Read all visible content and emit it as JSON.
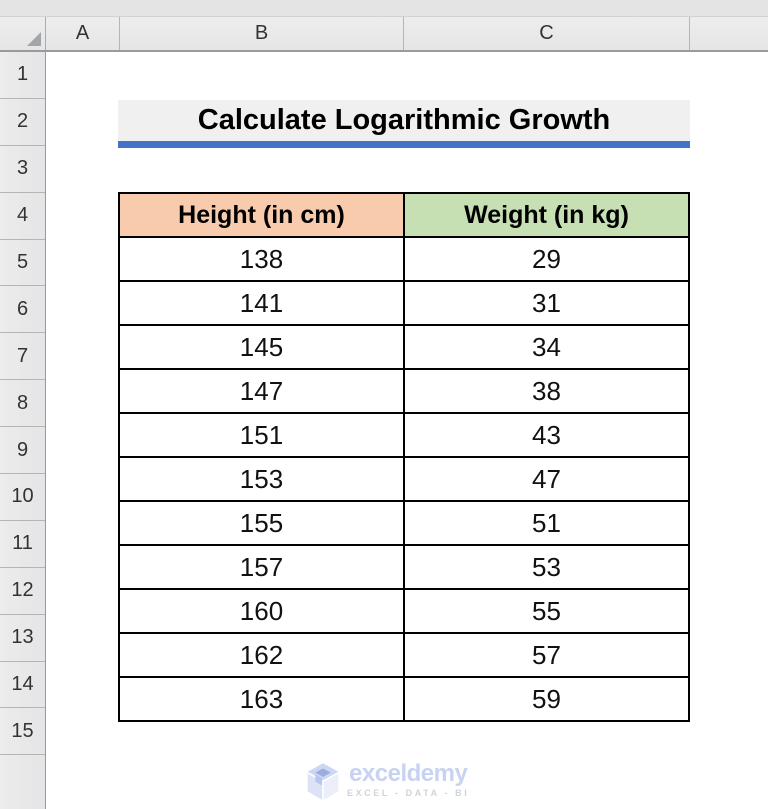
{
  "sheet": {
    "column_headers": [
      "A",
      "B",
      "C"
    ],
    "row_headers": [
      "1",
      "2",
      "3",
      "4",
      "5",
      "6",
      "7",
      "8",
      "9",
      "10",
      "11",
      "12",
      "13",
      "14",
      "15"
    ]
  },
  "title": {
    "text": "Calculate Logarithmic Growth"
  },
  "table": {
    "columns": [
      {
        "label": "Height (in cm)"
      },
      {
        "label": "Weight (in kg)"
      }
    ],
    "rows": [
      [
        "138",
        "29"
      ],
      [
        "141",
        "31"
      ],
      [
        "145",
        "34"
      ],
      [
        "147",
        "38"
      ],
      [
        "151",
        "43"
      ],
      [
        "153",
        "47"
      ],
      [
        "155",
        "51"
      ],
      [
        "157",
        "53"
      ],
      [
        "160",
        "55"
      ],
      [
        "162",
        "57"
      ],
      [
        "163",
        "59"
      ]
    ]
  },
  "watermark": {
    "brand": "exceldemy",
    "tagline": "EXCEL - DATA - BI",
    "logo": "exceldemy-cube-icon"
  },
  "colors": {
    "height_header_bg": "#F8CBAD",
    "weight_header_bg": "#C6E0B4",
    "title_underline": "#4472C4",
    "title_bg": "#F0F0F0",
    "header_chrome_bg": "#E9E9E9",
    "table_border": "#000000",
    "watermark_blue": "#C8D2F2",
    "watermark_gray": "#CFD3DA"
  }
}
